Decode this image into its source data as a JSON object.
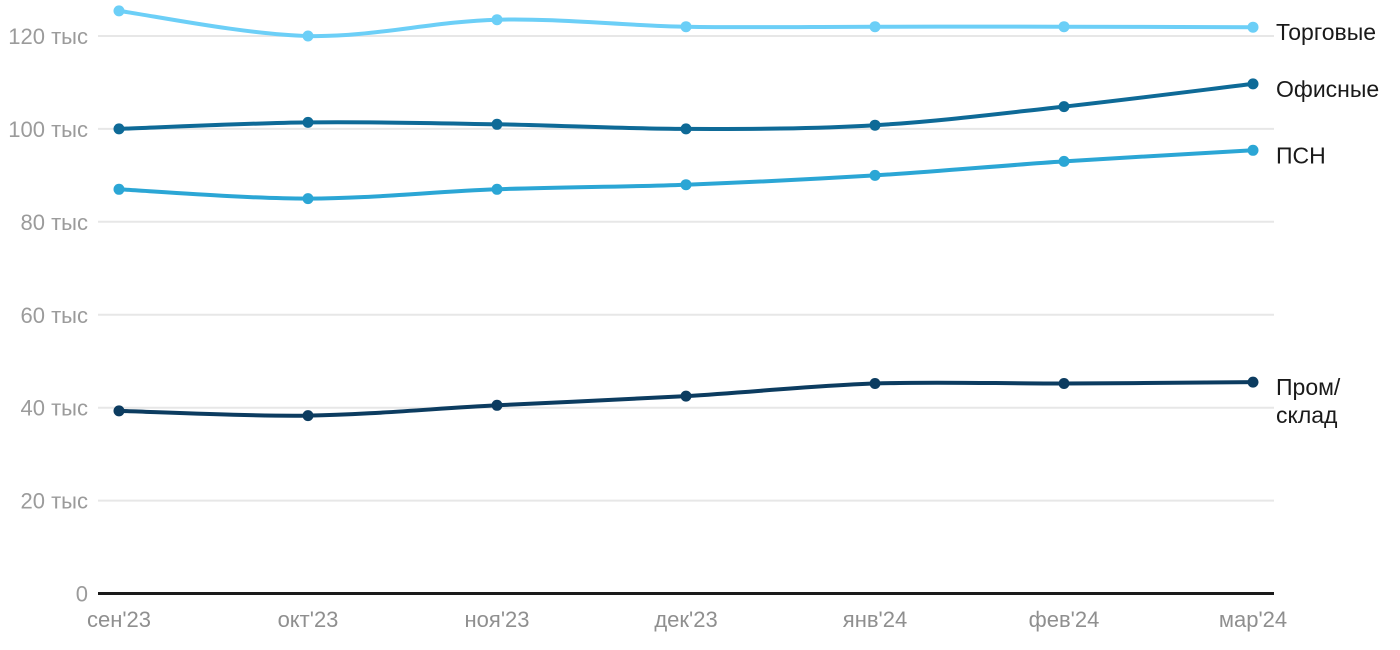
{
  "chart_data": {
    "type": "line",
    "title": "",
    "unit": "тыс",
    "categories": [
      "сен'23",
      "окт'23",
      "ноя'23",
      "дек'23",
      "янв'24",
      "фев'24",
      "мар'24"
    ],
    "series": [
      {
        "id": "torgovye",
        "name": "Торговые",
        "label_lines": [
          "Торговые"
        ],
        "color": "#6CCFF7",
        "values": [
          125.4,
          120.0,
          123.5,
          122.0,
          122.0,
          122.0,
          121.9
        ]
      },
      {
        "id": "ofisnye",
        "name": "Офисные",
        "label_lines": [
          "Офисные"
        ],
        "color": "#0E6A97",
        "values": [
          100.0,
          101.4,
          101.0,
          100.0,
          100.8,
          104.8,
          109.7
        ]
      },
      {
        "id": "psn",
        "name": "ПСН",
        "label_lines": [
          "ПСН"
        ],
        "color": "#2BA6D5",
        "values": [
          87.0,
          85.0,
          87.0,
          88.0,
          90.0,
          93.0,
          95.4
        ]
      },
      {
        "id": "prom-sklad",
        "name": "Пром/склад",
        "label_lines": [
          "Пром/",
          "склад"
        ],
        "color": "#0C3C60",
        "values": [
          39.3,
          38.3,
          40.5,
          42.5,
          45.2,
          45.2,
          45.5
        ]
      }
    ],
    "y_ticks": [
      {
        "value": 0,
        "label": "0"
      },
      {
        "value": 20,
        "label": "20 тыс"
      },
      {
        "value": 40,
        "label": "40 тыс"
      },
      {
        "value": 60,
        "label": "60 тыс"
      },
      {
        "value": 80,
        "label": "80 тыс"
      },
      {
        "value": 100,
        "label": "100 тыс"
      },
      {
        "value": 120,
        "label": "120 тыс"
      }
    ],
    "ylim": [
      0,
      128
    ],
    "grid": "horizontal",
    "legend_position": "right-of-lines"
  },
  "colors": {
    "background": "#ffffff",
    "gridline": "#e7e7e7",
    "axis_line": "#1a1a1a",
    "y_tick_text": "#9b9b9b",
    "x_tick_text": "#8f8f8f",
    "legend_text": "#1a1a1a"
  }
}
